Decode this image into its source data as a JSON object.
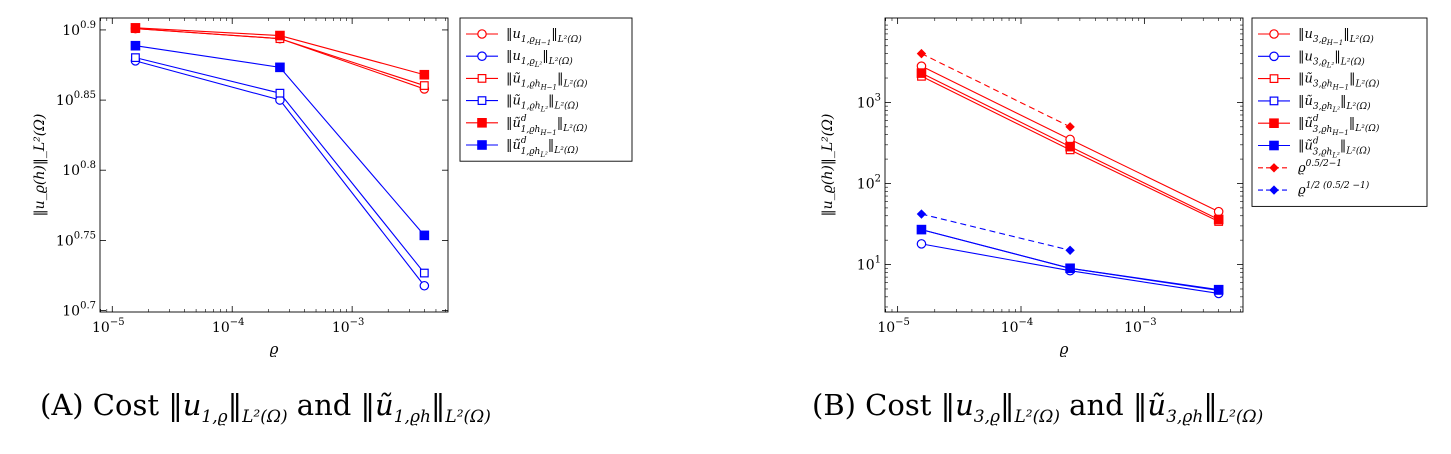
{
  "chart_data": [
    {
      "type": "line",
      "xscale": "log",
      "yscale": "log",
      "xlabel": "ϱ",
      "ylabel": "‖u_ϱ(h)‖_L²(Ω)",
      "xlim": [
        7.9e-06,
        0.0063
      ],
      "ylim": [
        5.0,
        8.1
      ],
      "x_ticks": [
        {
          "value": 1e-05,
          "base": "10",
          "exp": "−5"
        },
        {
          "value": 0.0001,
          "base": "10",
          "exp": "−4"
        },
        {
          "value": 0.001,
          "base": "10",
          "exp": "−3"
        }
      ],
      "y_ticks": [
        {
          "value": 5.012,
          "base": "10",
          "exp": "0.7"
        },
        {
          "value": 5.623,
          "base": "10",
          "exp": "0.75"
        },
        {
          "value": 6.31,
          "base": "10",
          "exp": "0.8"
        },
        {
          "value": 7.079,
          "base": "10",
          "exp": "0.85"
        },
        {
          "value": 7.943,
          "base": "10",
          "exp": "0.9"
        }
      ],
      "grid": false,
      "legend_position": "outside-right",
      "series": [
        {
          "name": "‖u1,ϱH−1‖L²(Ω)",
          "color": "#ff0000",
          "marker": "circle",
          "filled": false,
          "dashed": false,
          "x": [
            1.56e-05,
            0.00025,
            0.004
          ],
          "y": [
            7.96,
            7.83,
            7.21
          ]
        },
        {
          "name": "‖u1,ϱL²‖L²(Ω)",
          "color": "#0000ff",
          "marker": "circle",
          "filled": false,
          "dashed": false,
          "x": [
            1.56e-05,
            0.00025,
            0.004
          ],
          "y": [
            7.55,
            7.08,
            5.22
          ]
        },
        {
          "name": "‖ũ1,ϱhH−1‖L²(Ω)",
          "color": "#ff0000",
          "marker": "square",
          "filled": false,
          "dashed": false,
          "x": [
            1.56e-05,
            0.00025,
            0.004
          ],
          "y": [
            7.96,
            7.83,
            7.25
          ]
        },
        {
          "name": "‖ũ1,ϱhL²‖L²(Ω)",
          "color": "#0000ff",
          "marker": "square",
          "filled": false,
          "dashed": false,
          "x": [
            1.56e-05,
            0.00025,
            0.004
          ],
          "y": [
            7.59,
            7.16,
            5.33
          ]
        },
        {
          "name": "‖ũd1,ϱhH−1‖L²(Ω)",
          "color": "#ff0000",
          "marker": "square",
          "filled": true,
          "dashed": false,
          "x": [
            1.56e-05,
            0.00025,
            0.004
          ],
          "y": [
            7.97,
            7.87,
            7.38
          ]
        },
        {
          "name": "‖ũd1,ϱhL²‖L²(Ω)",
          "color": "#0000ff",
          "marker": "square",
          "filled": true,
          "dashed": false,
          "x": [
            1.56e-05,
            0.00025,
            0.004
          ],
          "y": [
            7.74,
            7.47,
            5.67
          ]
        }
      ]
    },
    {
      "type": "line",
      "xscale": "log",
      "yscale": "log",
      "xlabel": "ϱ",
      "ylabel": "‖u_ϱ(h)‖_L²(Ω)",
      "xlim": [
        7.9e-06,
        0.0063
      ],
      "ylim": [
        2.6,
        11000
      ],
      "x_ticks": [
        {
          "value": 1e-05,
          "base": "10",
          "exp": "−5"
        },
        {
          "value": 0.0001,
          "base": "10",
          "exp": "−4"
        },
        {
          "value": 0.001,
          "base": "10",
          "exp": "−3"
        }
      ],
      "y_ticks": [
        {
          "value": 10,
          "base": "10",
          "exp": "1"
        },
        {
          "value": 100,
          "base": "10",
          "exp": "2"
        },
        {
          "value": 1000,
          "base": "10",
          "exp": "3"
        }
      ],
      "grid": false,
      "legend_position": "outside-right",
      "series": [
        {
          "name": "‖u3,ϱH−1‖L²(Ω)",
          "color": "#ff0000",
          "marker": "circle",
          "filled": false,
          "dashed": false,
          "x": [
            1.56e-05,
            0.00025,
            0.004
          ],
          "y": [
            2800,
            350,
            45
          ]
        },
        {
          "name": "‖u3,ϱL²‖L²(Ω)",
          "color": "#0000ff",
          "marker": "circle",
          "filled": false,
          "dashed": false,
          "x": [
            1.56e-05,
            0.00025,
            0.004
          ],
          "y": [
            18,
            8.4,
            4.4
          ]
        },
        {
          "name": "‖ũ3,ϱhH−1‖L²(Ω)",
          "color": "#ff0000",
          "marker": "square",
          "filled": false,
          "dashed": false,
          "x": [
            1.56e-05,
            0.00025,
            0.004
          ],
          "y": [
            2100,
            260,
            34
          ]
        },
        {
          "name": "‖ũ3,ϱhL²‖L²(Ω)",
          "color": "#0000ff",
          "marker": "square",
          "filled": false,
          "dashed": false,
          "x": [
            1.56e-05,
            0.00025,
            0.004
          ],
          "y": [
            27,
            9.0,
            4.8
          ]
        },
        {
          "name": "‖ũd3,ϱhH−1‖L²(Ω)",
          "color": "#ff0000",
          "marker": "square",
          "filled": true,
          "dashed": false,
          "x": [
            1.56e-05,
            0.00025,
            0.004
          ],
          "y": [
            2300,
            285,
            36
          ]
        },
        {
          "name": "‖ũd3,ϱhL²‖L²(Ω)",
          "color": "#0000ff",
          "marker": "square",
          "filled": true,
          "dashed": false,
          "x": [
            1.56e-05,
            0.00025,
            0.004
          ],
          "y": [
            27,
            9.0,
            4.9
          ]
        },
        {
          "name": "ϱ^(0.5/2−1)",
          "color": "#ff0000",
          "marker": "diamond",
          "filled": true,
          "dashed": true,
          "x": [
            1.56e-05,
            0.00025
          ],
          "y": [
            4000,
            500
          ]
        },
        {
          "name": "ϱ^(1/2 (0.5/2 −1))",
          "color": "#0000ff",
          "marker": "diamond",
          "filled": true,
          "dashed": true,
          "x": [
            1.56e-05,
            0.00025
          ],
          "y": [
            42,
            15
          ]
        }
      ]
    }
  ],
  "legend_labels": [
    [
      {
        "main": "‖u",
        "sub": "1,ϱ",
        "subsub": "H−1",
        "sup": "",
        "tail": "‖",
        "tailsub": "L²(Ω)"
      },
      {
        "main": "‖u",
        "sub": "1,ϱ",
        "subsub": "L²",
        "sup": "",
        "tail": "‖",
        "tailsub": "L²(Ω)"
      },
      {
        "main": "‖ũ",
        "sub": "1,ϱh",
        "subsub": "H−1",
        "sup": "",
        "tail": "‖",
        "tailsub": "L²(Ω)"
      },
      {
        "main": "‖ũ",
        "sub": "1,ϱh",
        "subsub": "L²",
        "sup": "",
        "tail": "‖",
        "tailsub": "L²(Ω)"
      },
      {
        "main": "‖ũ",
        "sub": "1,ϱh",
        "subsub": "H−1",
        "sup": "d",
        "tail": "‖",
        "tailsub": "L²(Ω)"
      },
      {
        "main": "‖ũ",
        "sub": "1,ϱh",
        "subsub": "L²",
        "sup": "d",
        "tail": "‖",
        "tailsub": "L²(Ω)"
      }
    ],
    [
      {
        "main": "‖u",
        "sub": "3,ϱ",
        "subsub": "H−1",
        "sup": "",
        "tail": "‖",
        "tailsub": "L²(Ω)"
      },
      {
        "main": "‖u",
        "sub": "3,ϱ",
        "subsub": "L²",
        "sup": "",
        "tail": "‖",
        "tailsub": "L²(Ω)"
      },
      {
        "main": "‖ũ",
        "sub": "3,ϱh",
        "subsub": "H−1",
        "sup": "",
        "tail": "‖",
        "tailsub": "L²(Ω)"
      },
      {
        "main": "‖ũ",
        "sub": "3,ϱh",
        "subsub": "L²",
        "sup": "",
        "tail": "‖",
        "tailsub": "L²(Ω)"
      },
      {
        "main": "‖ũ",
        "sub": "3,ϱh",
        "subsub": "H−1",
        "sup": "d",
        "tail": "‖",
        "tailsub": "L²(Ω)"
      },
      {
        "main": "‖ũ",
        "sub": "3,ϱh",
        "subsub": "L²",
        "sup": "d",
        "tail": "‖",
        "tailsub": "L²(Ω)"
      },
      {
        "main": "ϱ",
        "sub": "",
        "subsub": "",
        "sup": "0.5/2−1",
        "tail": "",
        "tailsub": ""
      },
      {
        "main": "ϱ",
        "sub": "",
        "subsub": "",
        "sup": "1/2 (0.5/2 −1)",
        "tail": "",
        "tailsub": ""
      }
    ]
  ],
  "captions": {
    "a": {
      "tag": "(A)",
      "word1": "Cost",
      "norm1": "‖u",
      "sub1": "1,ϱ",
      "tail1": "‖",
      "tailsub1": "L²(Ω)",
      "word2": "and",
      "norm2": "‖ũ",
      "sub2": "1,ϱh",
      "tail2": "‖",
      "tailsub2": "L²(Ω)"
    },
    "b": {
      "tag": "(B)",
      "word1": "Cost",
      "norm1": "‖u",
      "sub1": "3,ϱ",
      "tail1": "‖",
      "tailsub1": "L²(Ω)",
      "word2": "and",
      "norm2": "‖ũ",
      "sub2": "3,ϱh",
      "tail2": "‖",
      "tailsub2": "L²(Ω)"
    }
  }
}
